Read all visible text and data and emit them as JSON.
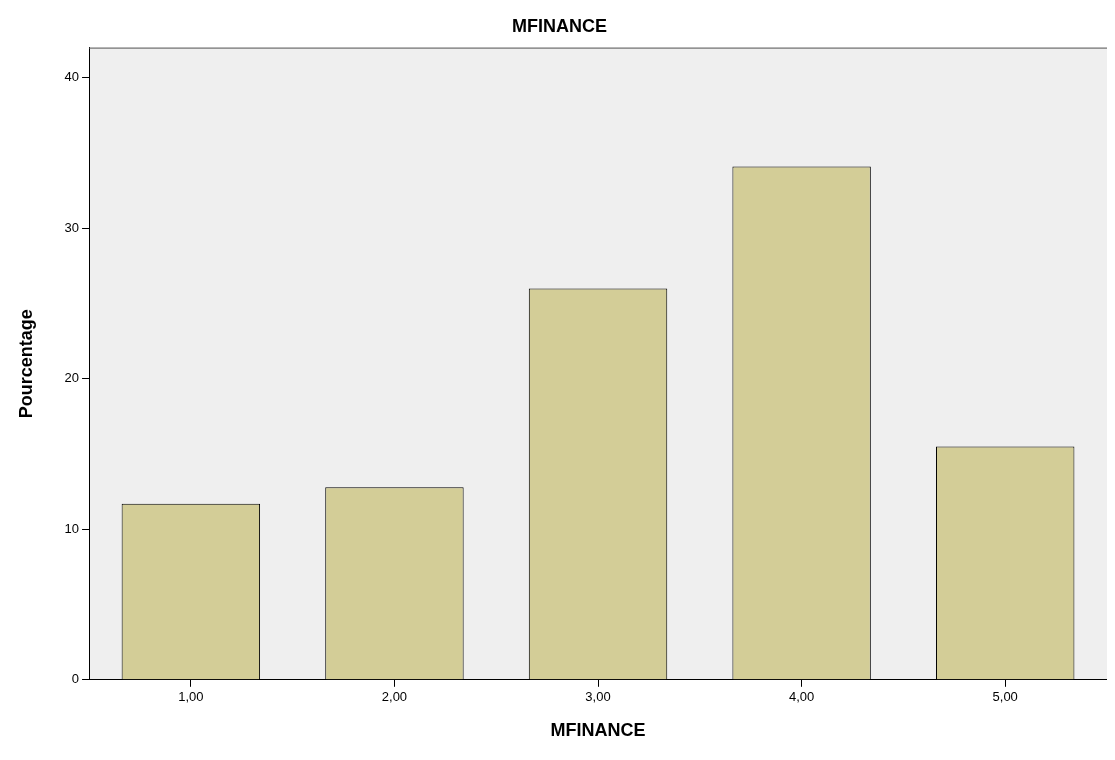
{
  "chart_data": {
    "type": "bar",
    "title": "MFINANCE",
    "xlabel": "MFINANCE",
    "ylabel": "Pourcentage",
    "categories": [
      "1,00",
      "2,00",
      "3,00",
      "4,00",
      "5,00"
    ],
    "values": [
      11.7,
      12.8,
      26.0,
      34.1,
      15.5
    ],
    "color": "#d3cd97",
    "ylim": [
      0,
      42
    ],
    "yticks": [
      0,
      10,
      20,
      30,
      40
    ],
    "grid": false,
    "legend": false
  }
}
